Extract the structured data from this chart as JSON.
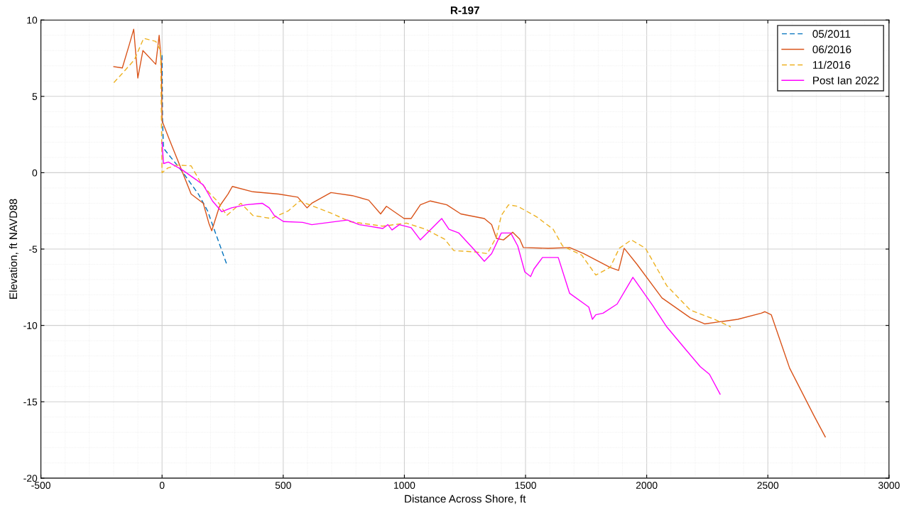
{
  "chart_data": {
    "type": "line",
    "title": "R-197",
    "xlabel": "Distance Across Shore, ft",
    "ylabel": "Elevation, ft NAVD88",
    "xlim": [
      -500,
      3000
    ],
    "ylim": [
      -20,
      10
    ],
    "xticks": [
      -500,
      0,
      500,
      1000,
      1500,
      2000,
      2500,
      3000
    ],
    "yticks": [
      -20,
      -15,
      -10,
      -5,
      0,
      5,
      10
    ],
    "grid": true,
    "legend": "top right",
    "marker": "none",
    "series": [
      {
        "name": "05/2011",
        "color": "#0072bd",
        "line_style": "dashed",
        "x": [
          0,
          2,
          6,
          82,
          150,
          188,
          208,
          267
        ],
        "values": [
          7.7,
          3.5,
          1.6,
          0.1,
          -1.4,
          -2.5,
          -3.4,
          -6.0
        ]
      },
      {
        "name": "06/2016",
        "color": "#d95319",
        "line_style": "solid",
        "x": [
          -199,
          -164,
          -135,
          -117,
          -100,
          -79,
          -26,
          -12,
          -3,
          0,
          32,
          70,
          120,
          170,
          193,
          205,
          237,
          272,
          290,
          375,
          481,
          560,
          598,
          618,
          697,
          785,
          853,
          902,
          926,
          999,
          1028,
          1066,
          1107,
          1175,
          1233,
          1330,
          1360,
          1380,
          1409,
          1447,
          1476,
          1491,
          1594,
          1682,
          1740,
          1849,
          1884,
          1907,
          1960,
          2063,
          2180,
          2239,
          2376,
          2473,
          2488,
          2514,
          2590,
          2690,
          2737
        ],
        "values": [
          6.95,
          6.86,
          8.4,
          9.4,
          6.2,
          8.0,
          7.1,
          9.0,
          7.2,
          3.4,
          2.1,
          0.6,
          -1.4,
          -2.0,
          -3.3,
          -3.8,
          -2.2,
          -1.4,
          -0.9,
          -1.25,
          -1.4,
          -1.6,
          -2.3,
          -2.0,
          -1.3,
          -1.5,
          -1.8,
          -2.7,
          -2.2,
          -3.0,
          -3.0,
          -2.1,
          -1.85,
          -2.1,
          -2.7,
          -3.0,
          -3.4,
          -4.3,
          -4.4,
          -3.9,
          -4.35,
          -4.9,
          -4.95,
          -4.9,
          -5.3,
          -6.2,
          -6.4,
          -4.95,
          -6.0,
          -8.2,
          -9.5,
          -9.9,
          -9.6,
          -9.2,
          -9.1,
          -9.3,
          -12.8,
          -15.9,
          -17.3
        ]
      },
      {
        "name": "11/2016",
        "color": "#edb120",
        "line_style": "dashed",
        "x": [
          -199,
          -164,
          -114,
          -76,
          -26,
          -6,
          -3,
          0,
          23,
          62,
          120,
          158,
          199,
          228,
          267,
          325,
          375,
          451,
          521,
          568,
          706,
          774,
          911,
          1008,
          1087,
          1166,
          1204,
          1301,
          1342,
          1380,
          1400,
          1430,
          1468,
          1547,
          1614,
          1653,
          1732,
          1790,
          1849,
          1887,
          1937,
          1995,
          2083,
          2180,
          2280,
          2347
        ],
        "values": [
          5.9,
          6.5,
          7.4,
          8.8,
          8.6,
          8.0,
          3.8,
          0.0,
          0.3,
          0.5,
          0.45,
          -0.6,
          -1.4,
          -1.85,
          -2.8,
          -2.0,
          -2.8,
          -3.0,
          -2.5,
          -1.85,
          -2.7,
          -3.2,
          -3.5,
          -3.3,
          -3.7,
          -4.35,
          -5.1,
          -5.2,
          -5.3,
          -4.2,
          -2.8,
          -2.1,
          -2.2,
          -2.9,
          -3.7,
          -4.8,
          -5.4,
          -6.7,
          -6.2,
          -4.95,
          -4.4,
          -4.95,
          -7.4,
          -9.0,
          -9.6,
          -10.1
        ]
      },
      {
        "name": "Post Ian 2022",
        "color": "#ff00ff",
        "line_style": "solid",
        "x": [
          0,
          6,
          26,
          82,
          141,
          170,
          208,
          246,
          287,
          346,
          413,
          442,
          463,
          501,
          580,
          618,
          765,
          814,
          911,
          932,
          949,
          979,
          1028,
          1066,
          1154,
          1184,
          1225,
          1283,
          1330,
          1360,
          1400,
          1439,
          1468,
          1497,
          1521,
          1535,
          1570,
          1635,
          1682,
          1761,
          1776,
          1790,
          1820,
          1878,
          1943,
          2025,
          2083,
          2162,
          2221,
          2259,
          2303
        ],
        "values": [
          2.0,
          0.6,
          0.7,
          0.2,
          -0.46,
          -0.8,
          -1.85,
          -2.55,
          -2.3,
          -2.1,
          -2.0,
          -2.3,
          -2.8,
          -3.2,
          -3.25,
          -3.4,
          -3.1,
          -3.4,
          -3.65,
          -3.4,
          -3.75,
          -3.4,
          -3.6,
          -4.4,
          -3.0,
          -3.7,
          -3.95,
          -4.95,
          -5.8,
          -5.3,
          -3.95,
          -3.95,
          -4.8,
          -6.5,
          -6.8,
          -6.3,
          -5.55,
          -5.55,
          -7.9,
          -8.8,
          -9.6,
          -9.3,
          -9.2,
          -8.6,
          -6.85,
          -8.7,
          -10.1,
          -11.6,
          -12.7,
          -13.2,
          -14.5
        ]
      }
    ]
  }
}
